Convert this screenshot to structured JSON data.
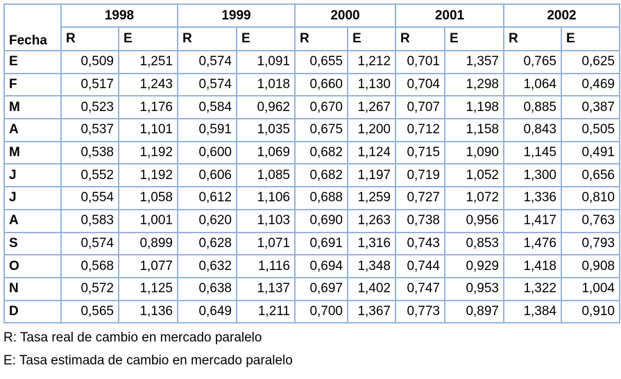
{
  "table": {
    "corner": "Fecha",
    "years": [
      "1998",
      "1999",
      "2000",
      "2001",
      "2002"
    ],
    "subheaders": [
      "R",
      "E",
      "R",
      "E",
      "R",
      "E",
      "R",
      "E",
      "R",
      "E"
    ],
    "rows": [
      {
        "label": "E",
        "values": [
          "0,509",
          "1,251",
          "0,574",
          "1,091",
          "0,655",
          "1,212",
          "0,701",
          "1,357",
          "0,765",
          "0,625"
        ]
      },
      {
        "label": "F",
        "values": [
          "0,517",
          "1,243",
          "0,574",
          "1,018",
          "0,660",
          "1,130",
          "0,704",
          "1,298",
          "1,064",
          "0,469"
        ]
      },
      {
        "label": "M",
        "values": [
          "0,523",
          "1,176",
          "0,584",
          "0,962",
          "0,670",
          "1,267",
          "0,707",
          "1,198",
          "0,885",
          "0,387"
        ]
      },
      {
        "label": "A",
        "values": [
          "0,537",
          "1,101",
          "0,591",
          "1,035",
          "0,675",
          "1,200",
          "0,712",
          "1,158",
          "0,843",
          "0,505"
        ]
      },
      {
        "label": "M",
        "values": [
          "0,538",
          "1,192",
          "0,600",
          "1,069",
          "0,682",
          "1,124",
          "0,715",
          "1,090",
          "1,145",
          "0,491"
        ]
      },
      {
        "label": "J",
        "values": [
          "0,552",
          "1,192",
          "0,606",
          "1,085",
          "0,682",
          "1,197",
          "0,719",
          "1,052",
          "1,300",
          "0,656"
        ]
      },
      {
        "label": "J",
        "values": [
          "0,554",
          "1,058",
          "0,612",
          "1,106",
          "0,688",
          "1,259",
          "0,727",
          "1,072",
          "1,336",
          "0,810"
        ]
      },
      {
        "label": "A",
        "values": [
          "0,583",
          "1,001",
          "0,620",
          "1,103",
          "0,690",
          "1,263",
          "0,738",
          "0,956",
          "1,417",
          "0,763"
        ]
      },
      {
        "label": "S",
        "values": [
          "0,574",
          "0,899",
          "0,628",
          "1,071",
          "0,691",
          "1,316",
          "0,743",
          "0,853",
          "1,476",
          "0,793"
        ]
      },
      {
        "label": "O",
        "values": [
          "0,568",
          "1,077",
          "0,632",
          "1,116",
          "0,694",
          "1,348",
          "0,744",
          "0,929",
          "1,418",
          "0,908"
        ]
      },
      {
        "label": "N",
        "values": [
          "0,572",
          "1,125",
          "0,638",
          "1,137",
          "0,697",
          "1,402",
          "0,747",
          "0,953",
          "1,322",
          "1,004"
        ]
      },
      {
        "label": "D",
        "values": [
          "0,565",
          "1,136",
          "0,649",
          "1,211",
          "0,700",
          "1,367",
          "0,773",
          "0,897",
          "1,384",
          "0,910"
        ]
      }
    ],
    "notes": [
      "R:  Tasa real de cambio en mercado paralelo",
      "E: Tasa estimada de cambio en mercado paralelo"
    ]
  }
}
